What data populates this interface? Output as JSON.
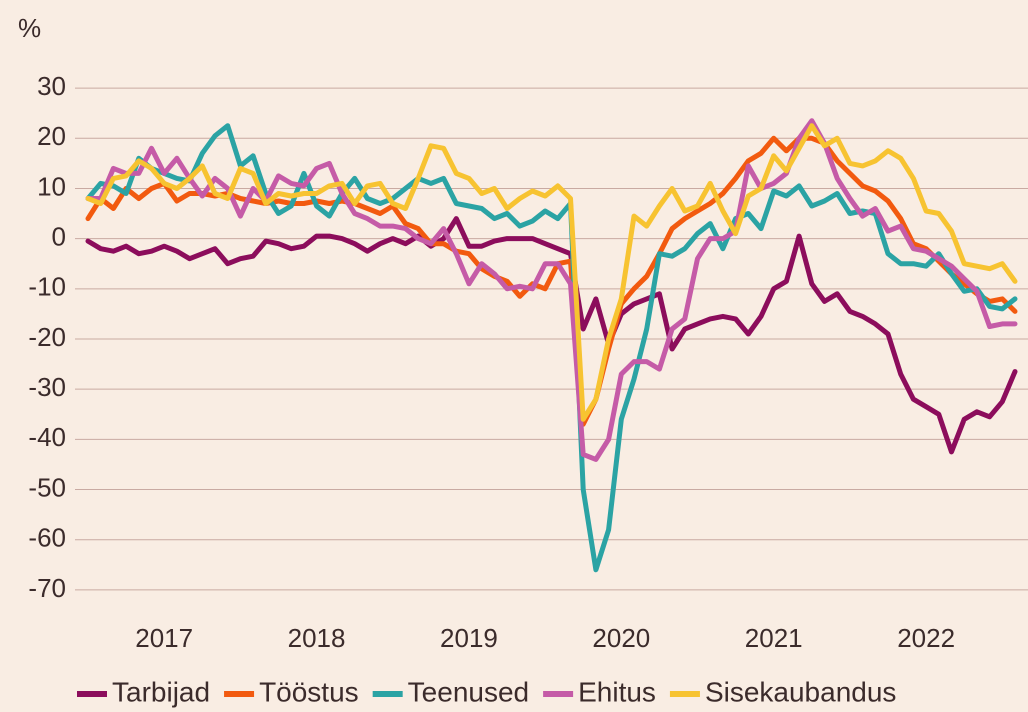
{
  "chart_data": {
    "type": "line",
    "y_label": "%",
    "categories": [
      null,
      null,
      null,
      null,
      null,
      null,
      "2017",
      null,
      null,
      null,
      null,
      null,
      null,
      null,
      null,
      null,
      null,
      null,
      "2018",
      null,
      null,
      null,
      null,
      null,
      null,
      null,
      null,
      null,
      null,
      null,
      "2019",
      null,
      null,
      null,
      null,
      null,
      null,
      null,
      null,
      null,
      null,
      null,
      "2020",
      null,
      null,
      null,
      null,
      null,
      null,
      null,
      null,
      null,
      null,
      null,
      "2021",
      null,
      null,
      null,
      null,
      null,
      null,
      null,
      null,
      null,
      null,
      null,
      "2022",
      null,
      null,
      null,
      null,
      null,
      null,
      null
    ],
    "ylim": [
      -75,
      35
    ],
    "yticks": [
      30,
      20,
      10,
      0,
      -10,
      -20,
      -30,
      -40,
      -50,
      -60,
      -70
    ],
    "grid": true,
    "legend": "bottom",
    "series": [
      {
        "name": "Tarbijad",
        "color": "#8c0d5c",
        "values": [
          -0.5,
          -2,
          -2.5,
          -1.5,
          -3,
          -2.5,
          -1.5,
          -2.5,
          -4,
          -3,
          -2,
          -5,
          -4,
          -3.5,
          -0.5,
          -1,
          -2,
          -1.5,
          0.5,
          0.5,
          0,
          -1,
          -2.5,
          -1,
          0,
          -1,
          0.5,
          -1.5,
          0,
          4,
          -1.5,
          -1.5,
          -0.5,
          0,
          0,
          0,
          -1,
          -2,
          -3,
          -18,
          -12,
          -21,
          -15,
          -13,
          -12,
          -11,
          -22,
          -18,
          -17,
          -16,
          -15.5,
          -16,
          -19,
          -15.5,
          -10,
          -8.5,
          0.5,
          -9,
          -12.5,
          -11,
          -14.5,
          -15.5,
          -17,
          -19,
          -27,
          -32,
          -33.5,
          -35,
          -42.5,
          -36,
          -34.5,
          -35.5,
          -32.5,
          -26.5
        ]
      },
      {
        "name": "Tööstus",
        "color": "#f25a0f",
        "values": [
          4,
          8,
          6,
          10,
          8,
          10,
          11,
          7.5,
          9,
          9,
          8.5,
          9,
          8,
          7.5,
          7,
          7.5,
          7,
          7,
          7.5,
          7,
          7.5,
          7,
          6,
          5,
          6.5,
          3,
          2,
          -1,
          -1,
          -2.5,
          -3,
          -6,
          -7.5,
          -8.5,
          -11.5,
          -9,
          -10,
          -5,
          -4.5,
          -37,
          -32,
          -22,
          -13,
          -10,
          -7.5,
          -3,
          2,
          4,
          5.5,
          7,
          9,
          12,
          15.5,
          17,
          20,
          17.5,
          20,
          20,
          19,
          15.5,
          13,
          10.5,
          9.5,
          7.5,
          4,
          -1,
          -2,
          -4.5,
          -7,
          -9,
          -11,
          -12.5,
          -12,
          -14.5
        ]
      },
      {
        "name": "Teenused",
        "color": "#2ba3a4",
        "values": [
          8,
          11,
          10.5,
          9,
          16,
          14,
          13,
          12,
          11.5,
          17,
          20.5,
          22.5,
          14.5,
          16.5,
          9,
          5,
          6.5,
          13,
          6.5,
          4.5,
          9,
          12,
          8,
          7,
          8,
          10,
          12,
          11,
          12,
          7,
          6.5,
          6,
          4,
          5,
          2.5,
          3.5,
          5.5,
          4,
          7,
          -50,
          -66,
          -58,
          -36,
          -28,
          -18,
          -3,
          -3.5,
          -2,
          1,
          3,
          -2,
          4,
          5,
          2,
          9.5,
          8.5,
          10.5,
          6.5,
          7.5,
          9,
          5,
          5.5,
          5,
          -3,
          -5,
          -5,
          -5.5,
          -3,
          -7,
          -10.5,
          -10,
          -13.5,
          -14,
          -12
        ]
      },
      {
        "name": "Ehitus",
        "color": "#c55ba7",
        "values": [
          8,
          8,
          14,
          13,
          13,
          18,
          13,
          16,
          12,
          8.5,
          12,
          10,
          4.5,
          10,
          7.5,
          12.5,
          11,
          10.5,
          14,
          15,
          9,
          5,
          4,
          2.5,
          2.5,
          2,
          0,
          -1,
          2,
          -3,
          -9,
          -5,
          -7,
          -10,
          -9.5,
          -10,
          -5,
          -5,
          -9,
          -43,
          -44,
          -40,
          -27,
          -24.5,
          -24.5,
          -26,
          -18,
          -16,
          -4,
          0,
          0,
          1.5,
          14.5,
          10,
          11,
          13,
          20,
          23.5,
          19,
          12,
          8,
          4.5,
          6,
          1.5,
          2.5,
          -2,
          -2.5,
          -4,
          -5.5,
          -8,
          -10.5,
          -17.5,
          -17,
          -17
        ]
      },
      {
        "name": "Sisekaubandus",
        "color": "#f7c331",
        "values": [
          8,
          7,
          12,
          12.5,
          15.5,
          14,
          11,
          10,
          12,
          14.5,
          9,
          8,
          14,
          13,
          7,
          9,
          8.5,
          9,
          9,
          10.5,
          11,
          7,
          10.5,
          11,
          7,
          6,
          12,
          18.5,
          18,
          13,
          12,
          9,
          10,
          6,
          8,
          9.5,
          8.5,
          10.5,
          8,
          -36,
          -32,
          -20,
          -12,
          4.5,
          2.5,
          6.5,
          10,
          5.5,
          6.5,
          11,
          5.5,
          1,
          8.5,
          10,
          16.5,
          13.5,
          18,
          22.5,
          18.5,
          20,
          15,
          14.5,
          15.5,
          17.5,
          16,
          12,
          5.5,
          5,
          1.5,
          -5,
          -5.5,
          -6,
          -5,
          -8.5
        ]
      }
    ]
  }
}
